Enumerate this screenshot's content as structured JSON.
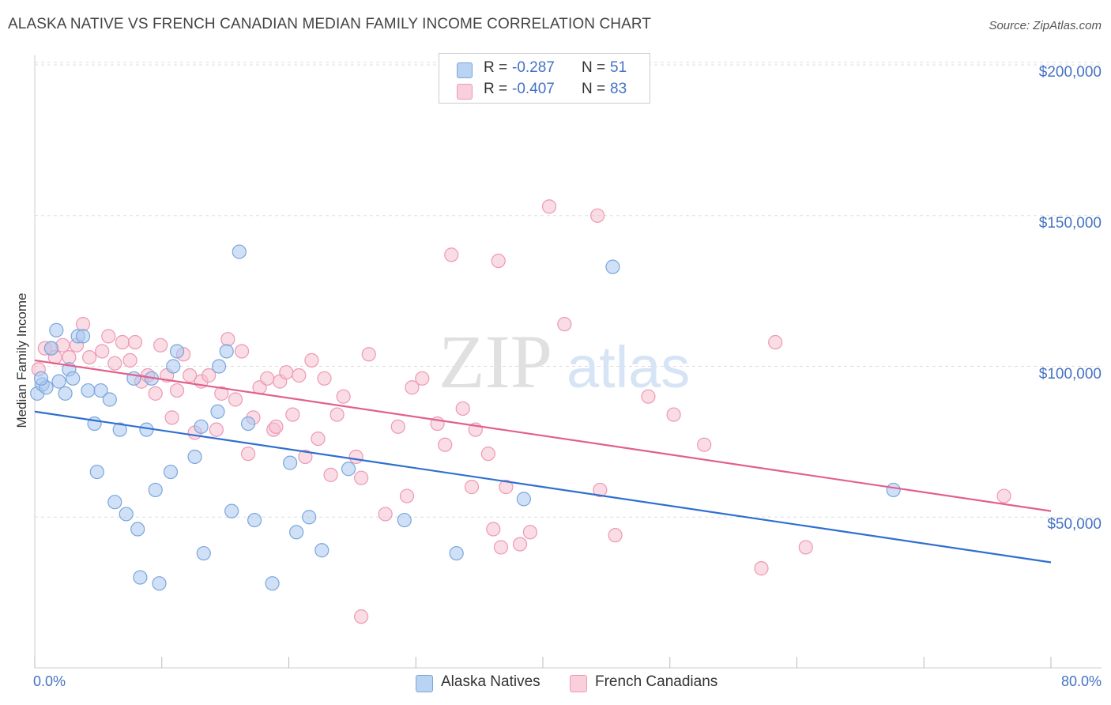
{
  "title": "ALASKA NATIVE VS FRENCH CANADIAN MEDIAN FAMILY INCOME CORRELATION CHART",
  "source": "Source: ZipAtlas.com",
  "watermark": {
    "zip": "ZIP",
    "atlas": "atlas"
  },
  "legend": {
    "rows": [
      {
        "r_label": "R =",
        "r_value": "-0.287",
        "n_label": "N =",
        "n_value": "51"
      },
      {
        "r_label": "R =",
        "r_value": "-0.407",
        "n_label": "N =",
        "n_value": "83"
      }
    ]
  },
  "bottom_legend": {
    "series1": "Alaska Natives",
    "series2": "French Canadians"
  },
  "colors": {
    "blue_fill": "#a9c8f0",
    "blue_stroke": "#7aa6dc",
    "blue_line": "#2f6fcf",
    "pink_fill": "#f6bfd0",
    "pink_stroke": "#ee98b5",
    "pink_line": "#e2608c",
    "axis_text": "#4472c4",
    "grid": "#dddddd"
  },
  "chart_data": {
    "type": "scatter",
    "title": "ALASKA NATIVE VS FRENCH CANADIAN MEDIAN FAMILY INCOME CORRELATION CHART",
    "xlabel": "",
    "ylabel": "Median Family Income",
    "xlim": [
      0,
      80
    ],
    "ylim": [
      0,
      205000
    ],
    "x_tick_labels": [
      "0.0%",
      "80.0%"
    ],
    "y_ticks": [
      50000,
      100000,
      150000,
      200000
    ],
    "y_tick_labels": [
      "$50,000",
      "$100,000",
      "$150,000",
      "$200,000"
    ],
    "grid": true,
    "series": [
      {
        "name": "Alaska Natives",
        "R": -0.287,
        "N": 51,
        "trend": {
          "x": [
            0,
            80
          ],
          "y": [
            85000,
            35000
          ]
        },
        "points": [
          [
            0.2,
            91000
          ],
          [
            0.6,
            94000
          ],
          [
            0.9,
            93000
          ],
          [
            1.3,
            106000
          ],
          [
            1.7,
            112000
          ],
          [
            1.9,
            95000
          ],
          [
            2.4,
            91000
          ],
          [
            2.7,
            99000
          ],
          [
            3.0,
            96000
          ],
          [
            3.4,
            110000
          ],
          [
            3.8,
            110000
          ],
          [
            4.2,
            92000
          ],
          [
            4.7,
            81000
          ],
          [
            4.9,
            65000
          ],
          [
            5.2,
            92000
          ],
          [
            5.9,
            89000
          ],
          [
            6.3,
            55000
          ],
          [
            6.7,
            79000
          ],
          [
            7.2,
            51000
          ],
          [
            7.8,
            96000
          ],
          [
            8.1,
            46000
          ],
          [
            8.3,
            30000
          ],
          [
            8.8,
            79000
          ],
          [
            9.2,
            96000
          ],
          [
            9.5,
            59000
          ],
          [
            9.8,
            28000
          ],
          [
            10.7,
            65000
          ],
          [
            10.9,
            100000
          ],
          [
            11.2,
            105000
          ],
          [
            12.6,
            70000
          ],
          [
            13.1,
            80000
          ],
          [
            13.3,
            38000
          ],
          [
            14.4,
            85000
          ],
          [
            14.5,
            100000
          ],
          [
            15.1,
            105000
          ],
          [
            15.5,
            52000
          ],
          [
            16.1,
            138000
          ],
          [
            16.8,
            81000
          ],
          [
            17.3,
            49000
          ],
          [
            18.7,
            28000
          ],
          [
            20.1,
            68000
          ],
          [
            20.6,
            45000
          ],
          [
            21.6,
            50000
          ],
          [
            22.6,
            39000
          ],
          [
            24.7,
            66000
          ],
          [
            29.1,
            49000
          ],
          [
            33.2,
            38000
          ],
          [
            38.5,
            56000
          ],
          [
            45.5,
            133000
          ],
          [
            67.6,
            59000
          ],
          [
            0.5,
            96000
          ]
        ]
      },
      {
        "name": "French Canadians",
        "R": -0.407,
        "N": 83,
        "trend": {
          "x": [
            0,
            80
          ],
          "y": [
            102000,
            52000
          ]
        },
        "points": [
          [
            0.3,
            99000
          ],
          [
            0.8,
            106000
          ],
          [
            1.3,
            106000
          ],
          [
            1.6,
            103000
          ],
          [
            2.2,
            107000
          ],
          [
            2.7,
            103000
          ],
          [
            3.3,
            107000
          ],
          [
            3.8,
            114000
          ],
          [
            4.3,
            103000
          ],
          [
            5.3,
            105000
          ],
          [
            5.8,
            110000
          ],
          [
            6.3,
            101000
          ],
          [
            6.9,
            108000
          ],
          [
            7.5,
            102000
          ],
          [
            7.9,
            108000
          ],
          [
            8.4,
            95000
          ],
          [
            8.9,
            97000
          ],
          [
            9.5,
            91000
          ],
          [
            9.9,
            107000
          ],
          [
            10.4,
            97000
          ],
          [
            10.8,
            83000
          ],
          [
            11.2,
            92000
          ],
          [
            11.7,
            104000
          ],
          [
            12.2,
            97000
          ],
          [
            12.6,
            78000
          ],
          [
            13.1,
            95000
          ],
          [
            13.7,
            97000
          ],
          [
            14.3,
            79000
          ],
          [
            14.7,
            91000
          ],
          [
            15.2,
            109000
          ],
          [
            15.8,
            89000
          ],
          [
            16.3,
            105000
          ],
          [
            16.8,
            71000
          ],
          [
            17.2,
            83000
          ],
          [
            17.7,
            93000
          ],
          [
            18.3,
            96000
          ],
          [
            18.8,
            79000
          ],
          [
            19.3,
            95000
          ],
          [
            19.8,
            98000
          ],
          [
            20.3,
            84000
          ],
          [
            20.8,
            97000
          ],
          [
            21.3,
            70000
          ],
          [
            21.8,
            102000
          ],
          [
            22.3,
            76000
          ],
          [
            22.8,
            96000
          ],
          [
            23.3,
            64000
          ],
          [
            23.8,
            84000
          ],
          [
            24.3,
            90000
          ],
          [
            25.3,
            70000
          ],
          [
            25.7,
            63000
          ],
          [
            26.3,
            104000
          ],
          [
            27.6,
            51000
          ],
          [
            28.6,
            80000
          ],
          [
            29.3,
            57000
          ],
          [
            29.7,
            93000
          ],
          [
            30.5,
            96000
          ],
          [
            31.7,
            81000
          ],
          [
            32.3,
            74000
          ],
          [
            32.8,
            137000
          ],
          [
            33.7,
            86000
          ],
          [
            34.7,
            79000
          ],
          [
            35.7,
            71000
          ],
          [
            36.1,
            46000
          ],
          [
            36.7,
            40000
          ],
          [
            37.1,
            60000
          ],
          [
            38.2,
            41000
          ],
          [
            39.0,
            45000
          ],
          [
            40.5,
            153000
          ],
          [
            41.7,
            114000
          ],
          [
            44.3,
            150000
          ],
          [
            44.5,
            59000
          ],
          [
            45.7,
            44000
          ],
          [
            48.3,
            90000
          ],
          [
            50.3,
            84000
          ],
          [
            52.7,
            74000
          ],
          [
            57.2,
            33000
          ],
          [
            58.3,
            108000
          ],
          [
            60.7,
            40000
          ],
          [
            25.7,
            17000
          ],
          [
            34.4,
            60000
          ],
          [
            36.5,
            135000
          ],
          [
            76.3,
            57000
          ],
          [
            19.0,
            80000
          ]
        ]
      }
    ]
  }
}
